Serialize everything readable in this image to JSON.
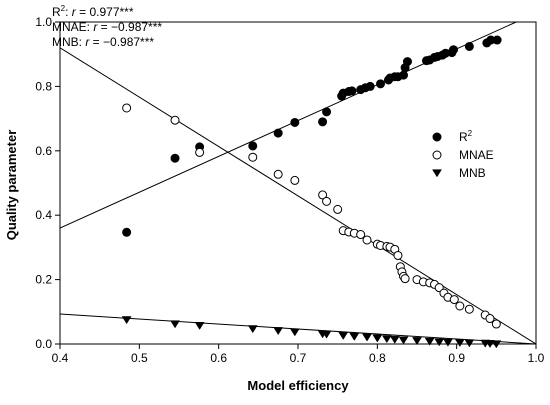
{
  "chart_data": {
    "type": "scatter",
    "title": "",
    "xlabel": "Model efficiency",
    "ylabel": "Quality parameter",
    "xlim": [
      0.4,
      1.0
    ],
    "ylim": [
      0.0,
      1.0
    ],
    "x_ticks": [
      "0.4",
      "0.5",
      "0.6",
      "0.7",
      "0.8",
      "0.9",
      "1.0"
    ],
    "y_ticks": [
      "0.0",
      "0.2",
      "0.4",
      "0.6",
      "0.8",
      "1.0"
    ],
    "legend_position": "right",
    "grid": false,
    "annotations": [
      {
        "label": "R",
        "sup": "2",
        "text": ": ",
        "r": "r",
        "value": " = 0.977***"
      },
      {
        "label": "MNAE",
        "sup": "",
        "text": ": ",
        "r": "r",
        "value": " = −0.987***"
      },
      {
        "label": "MNB",
        "sup": "",
        "text": ": ",
        "r": "r",
        "value": " = −0.987***"
      }
    ],
    "series": [
      {
        "name": "R2",
        "legend_main": "R",
        "legend_sup": "2",
        "marker": "circle-filled",
        "color": "#000000",
        "x": [
          0.484,
          0.545,
          0.576,
          0.643,
          0.675,
          0.696,
          0.731,
          0.736,
          0.755,
          0.757,
          0.764,
          0.768,
          0.779,
          0.785,
          0.791,
          0.804,
          0.814,
          0.816,
          0.822,
          0.826,
          0.833,
          0.835,
          0.838,
          0.862,
          0.866,
          0.872,
          0.876,
          0.882,
          0.886,
          0.894,
          0.896,
          0.916,
          0.938,
          0.943,
          0.951
        ],
        "y": [
          0.347,
          0.577,
          0.612,
          0.615,
          0.655,
          0.688,
          0.69,
          0.721,
          0.77,
          0.779,
          0.784,
          0.786,
          0.79,
          0.796,
          0.8,
          0.808,
          0.82,
          0.826,
          0.83,
          0.83,
          0.835,
          0.858,
          0.877,
          0.88,
          0.882,
          0.89,
          0.893,
          0.897,
          0.903,
          0.905,
          0.914,
          0.924,
          0.935,
          0.944,
          0.944
        ]
      },
      {
        "name": "MNAE",
        "legend_main": "MNAE",
        "legend_sup": "",
        "marker": "circle-open",
        "color": "#000000",
        "x": [
          0.484,
          0.545,
          0.576,
          0.643,
          0.675,
          0.696,
          0.731,
          0.736,
          0.75,
          0.757,
          0.764,
          0.771,
          0.779,
          0.787,
          0.8,
          0.804,
          0.812,
          0.816,
          0.822,
          0.826,
          0.829,
          0.831,
          0.833,
          0.835,
          0.85,
          0.858,
          0.866,
          0.872,
          0.878,
          0.884,
          0.889,
          0.897,
          0.904,
          0.916,
          0.936,
          0.942,
          0.95
        ],
        "y": [
          0.733,
          0.695,
          0.595,
          0.58,
          0.527,
          0.508,
          0.463,
          0.443,
          0.418,
          0.352,
          0.348,
          0.344,
          0.34,
          0.323,
          0.31,
          0.306,
          0.303,
          0.301,
          0.294,
          0.275,
          0.24,
          0.224,
          0.21,
          0.203,
          0.2,
          0.193,
          0.19,
          0.185,
          0.175,
          0.158,
          0.145,
          0.138,
          0.118,
          0.108,
          0.09,
          0.079,
          0.062
        ]
      },
      {
        "name": "MNB",
        "legend_main": "MNB",
        "legend_sup": "",
        "marker": "triangle-down",
        "color": "#000000",
        "x": [
          0.484,
          0.545,
          0.576,
          0.643,
          0.675,
          0.696,
          0.731,
          0.736,
          0.757,
          0.771,
          0.787,
          0.8,
          0.812,
          0.822,
          0.833,
          0.85,
          0.866,
          0.878,
          0.889,
          0.904,
          0.916,
          0.936,
          0.942,
          0.95
        ],
        "y": [
          0.075,
          0.062,
          0.057,
          0.047,
          0.041,
          0.037,
          0.031,
          0.03,
          0.026,
          0.023,
          0.021,
          0.018,
          0.016,
          0.014,
          0.012,
          0.01,
          0.008,
          0.006,
          0.005,
          0.004,
          0.003,
          0.002,
          0.001,
          0.0
        ]
      }
    ],
    "fit_lines": [
      {
        "series": "R2",
        "x": [
          0.4,
          0.975
        ],
        "y": [
          0.36,
          1.0
        ]
      },
      {
        "series": "MNAE",
        "x": [
          0.4,
          1.0
        ],
        "y": [
          0.92,
          0.0
        ]
      },
      {
        "series": "MNB",
        "x": [
          0.4,
          1.0
        ],
        "y": [
          0.093,
          0.0
        ]
      }
    ]
  }
}
